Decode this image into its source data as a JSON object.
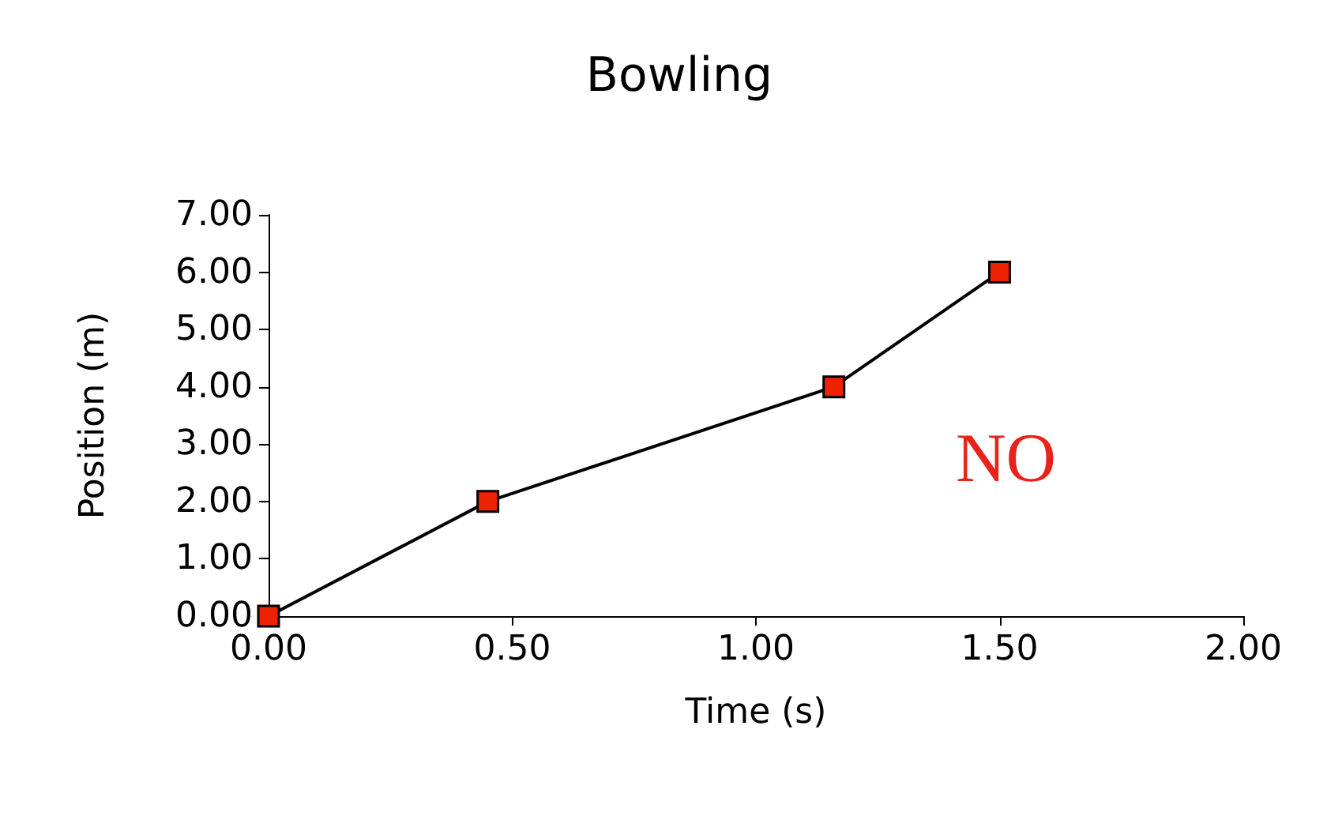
{
  "chart_data": {
    "type": "line",
    "title": "Bowling",
    "xlabel": "Time (s)",
    "ylabel": "Position (m)",
    "x": [
      0,
      0.45,
      1.16,
      1.5
    ],
    "series": [
      {
        "color": "#000000",
        "values": [
          0,
          2,
          4,
          6
        ]
      }
    ],
    "marker": "square",
    "line_style": "solid",
    "grid": false,
    "xlim": [
      0,
      2
    ],
    "xticks": [
      {
        "value": 0,
        "label": "0.00"
      },
      {
        "value": 0.5,
        "label": "0.50"
      },
      {
        "value": 1,
        "label": "1.00"
      },
      {
        "value": 1.5,
        "label": "1.50"
      },
      {
        "value": 2,
        "label": "2.00"
      }
    ],
    "ylim": [
      0,
      7
    ],
    "yticks": [
      {
        "value": 0,
        "label": "0.00"
      },
      {
        "value": 1,
        "label": "1.00"
      },
      {
        "value": 2,
        "label": "2.00"
      },
      {
        "value": 3,
        "label": "3.00"
      },
      {
        "value": 4,
        "label": "4.00"
      },
      {
        "value": 5,
        "label": "5.00"
      },
      {
        "value": 6,
        "label": "6.00"
      },
      {
        "value": 7,
        "label": "7.00"
      }
    ],
    "annotations": [
      "NO"
    ]
  }
}
